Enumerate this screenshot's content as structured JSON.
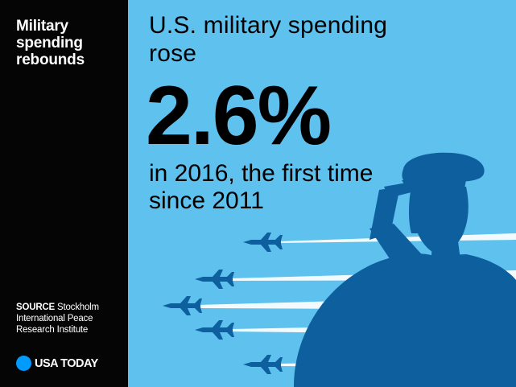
{
  "sidebar": {
    "title": "Military spending rebounds",
    "source_label": "SOURCE",
    "source_text": "Stockholm International Peace Research Institute",
    "brand_name": "USA TODAY"
  },
  "main": {
    "headline": "U.S. military spending rose",
    "big_number": "2.6%",
    "subtext": "in 2016, the first time since 2011"
  },
  "colors": {
    "sky": "#5ec1ee",
    "silhouette": "#0e5f9e",
    "jet_trail": "#ffffff",
    "panel": "#050505",
    "brand_dot": "#009bff"
  },
  "icons": {
    "soldier": "saluting-soldier-silhouette-icon",
    "jets": "fighter-jet-icon",
    "brand": "usa-today-dot-logo-icon"
  }
}
